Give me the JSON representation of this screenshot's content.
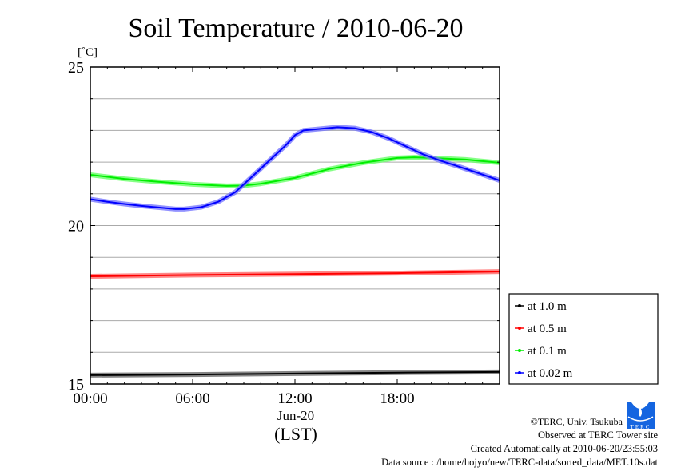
{
  "chart_data": {
    "type": "line",
    "title": "Soil Temperature / 2010-06-20",
    "ylabel": "[˚C]",
    "xlabel": "(LST)",
    "date_label": "Jun-20",
    "ylim": [
      15,
      25
    ],
    "xlim": [
      0,
      24
    ],
    "yticks": [
      {
        "v": 15,
        "label": "15"
      },
      {
        "v": 20,
        "label": "20"
      },
      {
        "v": 25,
        "label": "25"
      }
    ],
    "xticks": [
      {
        "v": 0,
        "label": "00:00"
      },
      {
        "v": 6,
        "label": "06:00"
      },
      {
        "v": 12,
        "label": "12:00"
      },
      {
        "v": 18,
        "label": "18:00"
      }
    ],
    "grid": true,
    "legend_position": "right",
    "series": [
      {
        "name": "at 1.0 m",
        "color": "#000000",
        "halo": "#666666",
        "x": [
          0,
          6,
          12,
          18,
          24
        ],
        "values": [
          15.28,
          15.3,
          15.33,
          15.36,
          15.38
        ]
      },
      {
        "name": "at 0.5 m",
        "color": "#ff0000",
        "halo": "#ff6666",
        "x": [
          0,
          6,
          12,
          18,
          24
        ],
        "values": [
          18.4,
          18.44,
          18.47,
          18.5,
          18.55
        ]
      },
      {
        "name": "at 0.1 m",
        "color": "#00ee00",
        "halo": "#66ff66",
        "x": [
          0,
          2,
          4,
          6,
          8,
          9,
          10,
          12,
          14,
          16,
          18,
          19,
          20,
          22,
          24
        ],
        "values": [
          21.6,
          21.47,
          21.38,
          21.3,
          21.25,
          21.26,
          21.32,
          21.5,
          21.78,
          21.98,
          22.13,
          22.15,
          22.13,
          22.08,
          21.98
        ]
      },
      {
        "name": "at 0.02 m",
        "color": "#0000ff",
        "halo": "#7777ff",
        "x": [
          0,
          1,
          2,
          3,
          4,
          5,
          5.5,
          6.5,
          7.5,
          8.5,
          9.5,
          10.5,
          11.5,
          12,
          12.5,
          13.5,
          14.5,
          15.5,
          16.5,
          17.5,
          18.5,
          19.5,
          20.5,
          21.5,
          22.5,
          24
        ],
        "values": [
          20.83,
          20.75,
          20.68,
          20.62,
          20.57,
          20.52,
          20.52,
          20.58,
          20.75,
          21.05,
          21.55,
          22.05,
          22.55,
          22.85,
          23.0,
          23.05,
          23.1,
          23.07,
          22.95,
          22.75,
          22.5,
          22.25,
          22.05,
          21.88,
          21.7,
          21.42
        ]
      }
    ]
  },
  "footer": {
    "copyright": "©TERC, Univ. Tsukuba",
    "site": "Observed at TERC Tower site",
    "created": "Created Automatically at 2010-06-20/23:55:03",
    "source": "Data source : /home/hojyo/new/TERC-data/sorted_data/MET.10s.dat",
    "logo_text": "TERC"
  }
}
